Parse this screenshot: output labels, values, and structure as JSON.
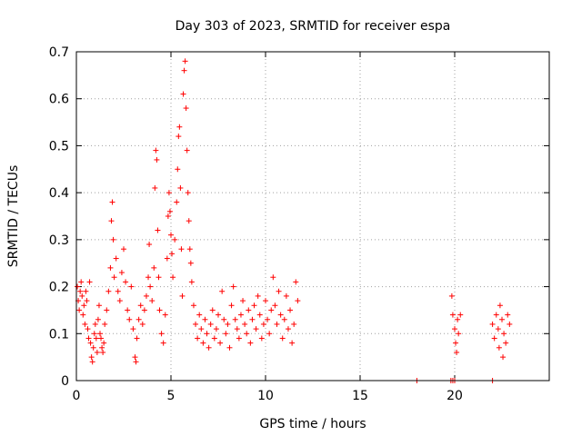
{
  "chart_data": {
    "type": "scatter",
    "title": "Day 303 of 2023, SRMTID for receiver espa",
    "xlabel": "GPS time / hours",
    "ylabel": "SRMTID / TECUs",
    "xlim": [
      0,
      25
    ],
    "ylim": [
      0,
      0.7
    ],
    "x_ticks": [
      "0",
      "5",
      "10",
      "15",
      "20"
    ],
    "y_ticks": [
      "0",
      "0.1",
      "0.2",
      "0.3",
      "0.4",
      "0.5",
      "0.6",
      "0.7"
    ],
    "grid": true,
    "marker": "+",
    "color": "#ff0000",
    "series": [
      {
        "name": "SRMTID",
        "points": [
          [
            0.05,
            0.2
          ],
          [
            0.1,
            0.17
          ],
          [
            0.15,
            0.15
          ],
          [
            0.2,
            0.19
          ],
          [
            0.25,
            0.21
          ],
          [
            0.3,
            0.18
          ],
          [
            0.35,
            0.14
          ],
          [
            0.4,
            0.16
          ],
          [
            0.45,
            0.12
          ],
          [
            0.5,
            0.19
          ],
          [
            0.55,
            0.17
          ],
          [
            0.6,
            0.11
          ],
          [
            0.65,
            0.09
          ],
          [
            0.7,
            0.21
          ],
          [
            0.75,
            0.08
          ],
          [
            0.8,
            0.05
          ],
          [
            0.85,
            0.04
          ],
          [
            0.9,
            0.07
          ],
          [
            0.95,
            0.1
          ],
          [
            1.0,
            0.12
          ],
          [
            1.05,
            0.09
          ],
          [
            1.1,
            0.06
          ],
          [
            1.15,
            0.13
          ],
          [
            1.2,
            0.16
          ],
          [
            1.25,
            0.1
          ],
          [
            1.3,
            0.09
          ],
          [
            1.35,
            0.07
          ],
          [
            1.4,
            0.06
          ],
          [
            1.45,
            0.08
          ],
          [
            1.5,
            0.12
          ],
          [
            1.6,
            0.15
          ],
          [
            1.7,
            0.19
          ],
          [
            1.8,
            0.24
          ],
          [
            1.85,
            0.34
          ],
          [
            1.9,
            0.38
          ],
          [
            1.95,
            0.3
          ],
          [
            2.0,
            0.22
          ],
          [
            2.1,
            0.26
          ],
          [
            2.2,
            0.19
          ],
          [
            2.3,
            0.17
          ],
          [
            2.4,
            0.23
          ],
          [
            2.5,
            0.28
          ],
          [
            2.6,
            0.21
          ],
          [
            2.7,
            0.15
          ],
          [
            2.8,
            0.13
          ],
          [
            2.9,
            0.2
          ],
          [
            3.0,
            0.11
          ],
          [
            3.1,
            0.05
          ],
          [
            3.15,
            0.04
          ],
          [
            3.2,
            0.09
          ],
          [
            3.3,
            0.13
          ],
          [
            3.4,
            0.16
          ],
          [
            3.5,
            0.12
          ],
          [
            3.6,
            0.15
          ],
          [
            3.7,
            0.18
          ],
          [
            3.8,
            0.22
          ],
          [
            3.85,
            0.29
          ],
          [
            3.9,
            0.2
          ],
          [
            4.0,
            0.17
          ],
          [
            4.1,
            0.24
          ],
          [
            4.15,
            0.41
          ],
          [
            4.2,
            0.49
          ],
          [
            4.25,
            0.47
          ],
          [
            4.3,
            0.32
          ],
          [
            4.35,
            0.22
          ],
          [
            4.4,
            0.15
          ],
          [
            4.5,
            0.1
          ],
          [
            4.6,
            0.08
          ],
          [
            4.7,
            0.14
          ],
          [
            4.8,
            0.26
          ],
          [
            4.85,
            0.35
          ],
          [
            4.9,
            0.4
          ],
          [
            4.95,
            0.36
          ],
          [
            5.0,
            0.31
          ],
          [
            5.05,
            0.27
          ],
          [
            5.1,
            0.22
          ],
          [
            5.2,
            0.3
          ],
          [
            5.3,
            0.38
          ],
          [
            5.35,
            0.45
          ],
          [
            5.4,
            0.52
          ],
          [
            5.45,
            0.54
          ],
          [
            5.5,
            0.41
          ],
          [
            5.55,
            0.28
          ],
          [
            5.6,
            0.18
          ],
          [
            5.65,
            0.61
          ],
          [
            5.7,
            0.66
          ],
          [
            5.75,
            0.68
          ],
          [
            5.8,
            0.58
          ],
          [
            5.85,
            0.49
          ],
          [
            5.9,
            0.4
          ],
          [
            5.95,
            0.34
          ],
          [
            6.0,
            0.28
          ],
          [
            6.05,
            0.25
          ],
          [
            6.1,
            0.21
          ],
          [
            6.2,
            0.16
          ],
          [
            6.3,
            0.12
          ],
          [
            6.4,
            0.09
          ],
          [
            6.5,
            0.14
          ],
          [
            6.6,
            0.11
          ],
          [
            6.7,
            0.08
          ],
          [
            6.8,
            0.13
          ],
          [
            6.9,
            0.1
          ],
          [
            7.0,
            0.07
          ],
          [
            7.1,
            0.12
          ],
          [
            7.2,
            0.15
          ],
          [
            7.3,
            0.09
          ],
          [
            7.4,
            0.11
          ],
          [
            7.5,
            0.14
          ],
          [
            7.6,
            0.08
          ],
          [
            7.7,
            0.19
          ],
          [
            7.8,
            0.13
          ],
          [
            7.9,
            0.1
          ],
          [
            8.0,
            0.12
          ],
          [
            8.1,
            0.07
          ],
          [
            8.2,
            0.16
          ],
          [
            8.3,
            0.2
          ],
          [
            8.4,
            0.13
          ],
          [
            8.5,
            0.11
          ],
          [
            8.6,
            0.09
          ],
          [
            8.7,
            0.14
          ],
          [
            8.8,
            0.17
          ],
          [
            8.9,
            0.12
          ],
          [
            9.0,
            0.1
          ],
          [
            9.1,
            0.15
          ],
          [
            9.2,
            0.08
          ],
          [
            9.3,
            0.13
          ],
          [
            9.4,
            0.16
          ],
          [
            9.5,
            0.11
          ],
          [
            9.6,
            0.18
          ],
          [
            9.7,
            0.14
          ],
          [
            9.8,
            0.09
          ],
          [
            9.9,
            0.12
          ],
          [
            10.0,
            0.17
          ],
          [
            10.1,
            0.13
          ],
          [
            10.2,
            0.1
          ],
          [
            10.3,
            0.15
          ],
          [
            10.4,
            0.22
          ],
          [
            10.5,
            0.16
          ],
          [
            10.6,
            0.12
          ],
          [
            10.7,
            0.19
          ],
          [
            10.8,
            0.14
          ],
          [
            10.9,
            0.09
          ],
          [
            11.0,
            0.13
          ],
          [
            11.1,
            0.18
          ],
          [
            11.2,
            0.11
          ],
          [
            11.3,
            0.15
          ],
          [
            11.4,
            0.08
          ],
          [
            11.5,
            0.12
          ],
          [
            11.6,
            0.21
          ],
          [
            11.7,
            0.17
          ],
          [
            18.0,
            0.0
          ],
          [
            19.8,
            0.0
          ],
          [
            19.9,
            0.0
          ],
          [
            20.0,
            0.0
          ],
          [
            22.0,
            0.0
          ],
          [
            19.85,
            0.18
          ],
          [
            19.9,
            0.14
          ],
          [
            20.0,
            0.11
          ],
          [
            20.05,
            0.08
          ],
          [
            20.1,
            0.06
          ],
          [
            20.15,
            0.13
          ],
          [
            20.2,
            0.1
          ],
          [
            20.3,
            0.14
          ],
          [
            22.0,
            0.12
          ],
          [
            22.1,
            0.09
          ],
          [
            22.2,
            0.14
          ],
          [
            22.3,
            0.11
          ],
          [
            22.35,
            0.07
          ],
          [
            22.4,
            0.16
          ],
          [
            22.5,
            0.13
          ],
          [
            22.55,
            0.05
          ],
          [
            22.6,
            0.1
          ],
          [
            22.7,
            0.08
          ],
          [
            22.8,
            0.14
          ],
          [
            22.9,
            0.12
          ]
        ]
      }
    ]
  }
}
